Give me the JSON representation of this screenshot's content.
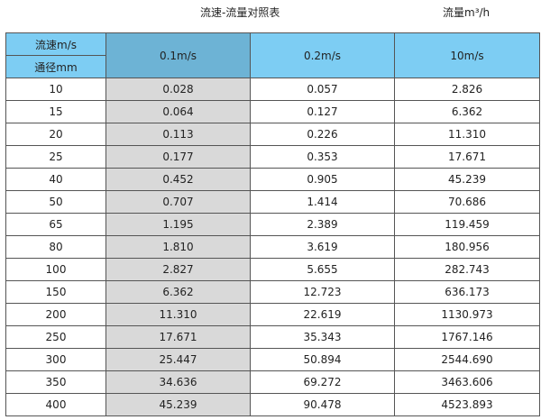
{
  "title": "流速-流量对照表",
  "unit_label": "流量m³/h",
  "colors": {
    "header": "#7dcdf3",
    "header_selected": "#6db3d5",
    "highlight_column": "#d9d9d9"
  },
  "header": {
    "velocity_label": "流速m/s",
    "diameter_label": "通径mm",
    "columns": [
      "0.1m/s",
      "0.2m/s",
      "10m/s"
    ]
  },
  "rows": [
    {
      "dn": "10",
      "v1": "0.028",
      "v2": "0.057",
      "v3": "2.826"
    },
    {
      "dn": "15",
      "v1": "0.064",
      "v2": "0.127",
      "v3": "6.362"
    },
    {
      "dn": "20",
      "v1": "0.113",
      "v2": "0.226",
      "v3": "11.310"
    },
    {
      "dn": "25",
      "v1": "0.177",
      "v2": "0.353",
      "v3": "17.671"
    },
    {
      "dn": "40",
      "v1": "0.452",
      "v2": "0.905",
      "v3": "45.239"
    },
    {
      "dn": "50",
      "v1": "0.707",
      "v2": "1.414",
      "v3": "70.686"
    },
    {
      "dn": "65",
      "v1": "1.195",
      "v2": "2.389",
      "v3": "119.459"
    },
    {
      "dn": "80",
      "v1": "1.810",
      "v2": "3.619",
      "v3": "180.956"
    },
    {
      "dn": "100",
      "v1": "2.827",
      "v2": "5.655",
      "v3": "282.743"
    },
    {
      "dn": "150",
      "v1": "6.362",
      "v2": "12.723",
      "v3": "636.173"
    },
    {
      "dn": "200",
      "v1": "11.310",
      "v2": "22.619",
      "v3": "1130.973"
    },
    {
      "dn": "250",
      "v1": "17.671",
      "v2": "35.343",
      "v3": "1767.146"
    },
    {
      "dn": "300",
      "v1": "25.447",
      "v2": "50.894",
      "v3": "2544.690"
    },
    {
      "dn": "350",
      "v1": "34.636",
      "v2": "69.272",
      "v3": "3463.606"
    },
    {
      "dn": "400",
      "v1": "45.239",
      "v2": "90.478",
      "v3": "4523.893"
    }
  ]
}
